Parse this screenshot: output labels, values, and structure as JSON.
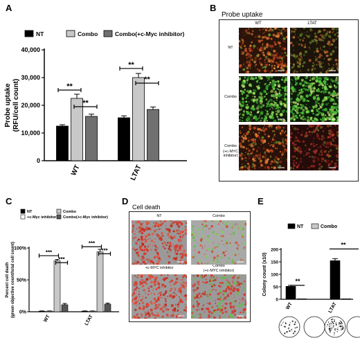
{
  "panels": {
    "A": {
      "letter": "A",
      "chart_data": {
        "type": "bar",
        "categories": [
          "WT",
          "LTAT"
        ],
        "series": [
          {
            "name": "NT",
            "values": [
              12500,
              15500
            ],
            "errors": [
              500,
              700
            ],
            "color": "#000000"
          },
          {
            "name": "Combo",
            "values": [
              22500,
              30000
            ],
            "errors": [
              1500,
              1500
            ],
            "color": "#c8c8c8"
          },
          {
            "name": "Combo(+c-Myc inhibitor)",
            "values": [
              16000,
              18500
            ],
            "errors": [
              800,
              900
            ],
            "color": "#707070"
          }
        ],
        "ylabel": "Probe uptake\n(RFU/cell count)",
        "ylabel_lines": [
          "Probe uptake",
          "(RFU/cell count)"
        ],
        "yticks": [
          "0",
          "10,000",
          "20,000",
          "30,000",
          "40,000"
        ],
        "ylim": [
          0,
          40000
        ],
        "significance": [
          "**",
          "**",
          "**",
          "**"
        ],
        "legend_position": "top"
      }
    },
    "B": {
      "letter": "B",
      "title": "Probe uptake",
      "columns": [
        "WT",
        "LTAT"
      ],
      "rows": [
        "NT",
        "Combo",
        "Combo\n(+c-MYC inhibitor)"
      ],
      "row_lines": [
        [
          "NT"
        ],
        [
          "Combo"
        ],
        [
          "Combo",
          "(+c-MYC inhibitor)"
        ]
      ]
    },
    "C": {
      "letter": "C",
      "chart_data": {
        "type": "bar",
        "categories": [
          "WT",
          "LTAT"
        ],
        "series": [
          {
            "name": "NT",
            "values": [
              1,
              1
            ],
            "errors": [
              0.3,
              0.3
            ],
            "color": "#000000"
          },
          {
            "name": "+c-Myc inhibitor",
            "values": [
              1,
              1
            ],
            "errors": [
              0.3,
              0.3
            ],
            "color": "#ffffff"
          },
          {
            "name": "Combo",
            "values": [
              80,
              94
            ],
            "errors": [
              2,
              4
            ],
            "color": "#c8c8c8"
          },
          {
            "name": "Combo(+c-Myc inhibitor)",
            "values": [
              11,
              12
            ],
            "errors": [
              2,
              1.5
            ],
            "color": "#555555"
          }
        ],
        "ylabel_lines": [
          "Percent cell death",
          "(green objective count/total cell count)"
        ],
        "yticks": [
          "0%",
          "50%",
          "100%"
        ],
        "ylim": [
          0,
          100
        ],
        "significance": [
          "***",
          "***",
          "***",
          "***"
        ],
        "legend_position": "top"
      }
    },
    "D": {
      "letter": "D",
      "title": "Cell death",
      "labels": [
        "NT",
        "Combo",
        "+c-MYC inhibitor",
        "Combo\n(+c-MYC inhibitor)"
      ],
      "label_lines": [
        [
          "NT"
        ],
        [
          "Combo"
        ],
        [
          "+c-MYC inhibitor"
        ],
        [
          "Combo",
          "(+c-MYC inhibitor)"
        ]
      ]
    },
    "E": {
      "letter": "E",
      "chart_data": {
        "type": "bar",
        "categories": [
          "WT",
          "LTAT"
        ],
        "series": [
          {
            "name": "NT",
            "values": [
              52,
              155
            ],
            "errors": [
              4,
              8
            ],
            "color": "#000000"
          },
          {
            "name": "Combo",
            "values": [
              0,
              0
            ],
            "errors": [
              0,
              0
            ],
            "color": "#c8c8c8"
          }
        ],
        "ylabel": "Colony count (x10)",
        "yticks": [
          "0",
          "50",
          "100",
          "150",
          "200"
        ],
        "ylim": [
          0,
          200
        ],
        "significance": [
          "**",
          "**"
        ],
        "legend_position": "top"
      }
    }
  }
}
